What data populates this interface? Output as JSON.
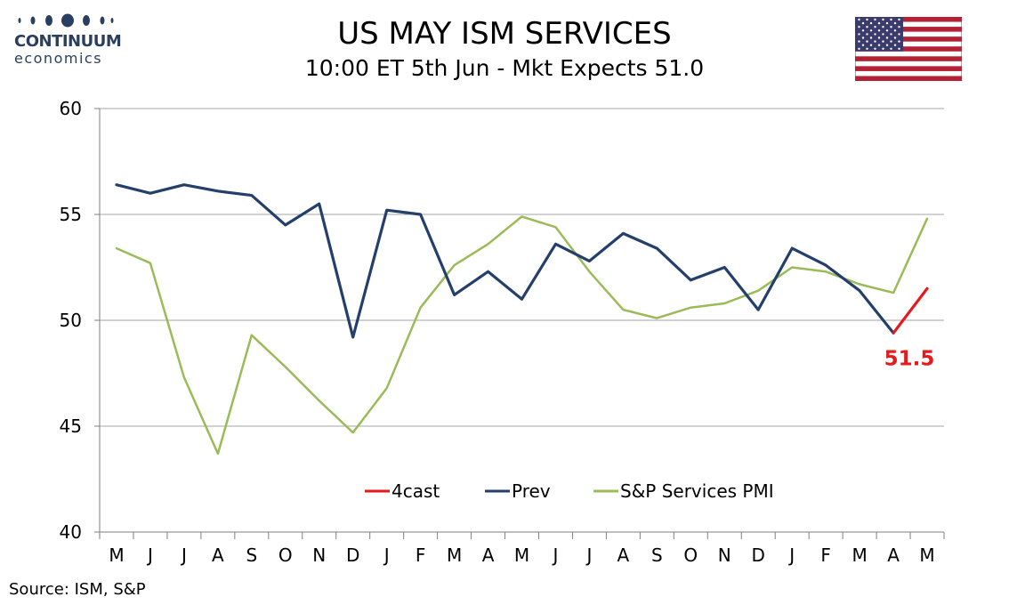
{
  "header": {
    "logo_line1": "CONTINUUM",
    "logo_line2": "economics",
    "title": "US MAY ISM SERVICES",
    "subtitle": "10:00 ET 5th Jun - Mkt Expects 51.0"
  },
  "flag": {
    "name": "us-flag-icon"
  },
  "footer": {
    "source": "Source: ISM, S&P"
  },
  "colors": {
    "prev": "#243f6b",
    "pmi": "#9bbb59",
    "forecast": "#e41a1c",
    "grid": "#a6a6a6",
    "axis": "#7f7f7f",
    "logo": "#2a3f5f"
  },
  "chart_data": {
    "type": "line",
    "categories": [
      "M",
      "J",
      "J",
      "A",
      "S",
      "O",
      "N",
      "D",
      "J",
      "F",
      "M",
      "A",
      "M",
      "J",
      "J",
      "A",
      "S",
      "O",
      "N",
      "D",
      "J",
      "F",
      "M",
      "A",
      "M"
    ],
    "ylim": [
      40,
      60
    ],
    "yticks": [
      40,
      45,
      50,
      55,
      60
    ],
    "grid": true,
    "legend_position": "bottom-center",
    "series": [
      {
        "name": "4cast",
        "key": "forecast",
        "values": [
          null,
          null,
          null,
          null,
          null,
          null,
          null,
          null,
          null,
          null,
          null,
          null,
          null,
          null,
          null,
          null,
          null,
          null,
          null,
          null,
          null,
          null,
          null,
          49.4,
          51.5
        ]
      },
      {
        "name": "Prev",
        "key": "prev",
        "values": [
          56.4,
          56.0,
          56.4,
          56.1,
          55.9,
          54.5,
          55.5,
          49.2,
          55.2,
          55.0,
          51.2,
          52.3,
          51.0,
          53.6,
          52.8,
          54.1,
          53.4,
          51.9,
          52.5,
          50.5,
          53.4,
          52.6,
          51.4,
          49.4,
          null
        ]
      },
      {
        "name": "S&P Services PMI",
        "key": "pmi",
        "values": [
          53.4,
          52.7,
          47.3,
          43.7,
          49.3,
          47.8,
          46.2,
          44.7,
          46.8,
          50.6,
          52.6,
          53.6,
          54.9,
          54.4,
          52.3,
          50.5,
          50.1,
          50.6,
          50.8,
          51.4,
          52.5,
          52.3,
          51.7,
          51.3,
          54.8
        ]
      }
    ],
    "annotations": [
      {
        "text": "51.5",
        "x_index": 24,
        "y": 51.5,
        "color": "#e41a1c"
      }
    ]
  }
}
